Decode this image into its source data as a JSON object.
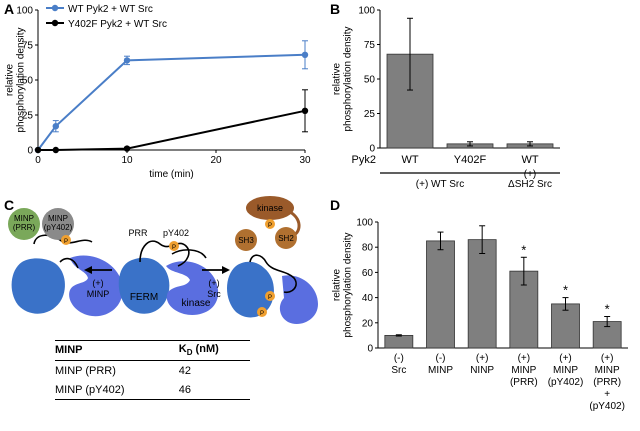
{
  "panels": {
    "A": "A",
    "B": "B",
    "C": "C",
    "D": "D"
  },
  "colors": {
    "blue": "#4a7ec7",
    "black": "#000000",
    "bar": "#7f7f7f",
    "blue_dark": "#3a66c4",
    "brown": "#9a5a2a",
    "green": "#7aa85a",
    "grey": "#8a8a8a",
    "orange": "#f0a030"
  },
  "chart_data": [
    {
      "panel": "A",
      "type": "line",
      "xlabel": "time (min)",
      "ylabel": "relative\nphosphorylation density",
      "xlim": [
        0,
        30
      ],
      "ylim": [
        0,
        100
      ],
      "xticks": [
        0,
        10,
        20,
        30
      ],
      "yticks": [
        0,
        25,
        50,
        75,
        100
      ],
      "legend": "top-left",
      "series": [
        {
          "name": "WT Pyk2 + WT Src",
          "color": "#4a7ec7",
          "x": [
            0,
            2,
            10,
            30
          ],
          "y": [
            0,
            17,
            64,
            68
          ],
          "err": [
            0,
            4,
            3,
            10
          ]
        },
        {
          "name": "Y402F Pyk2 + WT Src",
          "color": "#000000",
          "x": [
            0,
            2,
            10,
            30
          ],
          "y": [
            0,
            0,
            1,
            28
          ],
          "err": [
            0,
            0,
            1,
            15
          ]
        }
      ]
    },
    {
      "panel": "B",
      "type": "bar",
      "ylabel": "relative\nphosphorylation density",
      "ylim": [
        0,
        100
      ],
      "yticks": [
        0,
        25,
        50,
        75,
        100
      ],
      "row_label": "Pyk2",
      "categories": [
        "WT",
        "Y402F",
        "WT"
      ],
      "values": [
        68,
        3,
        3
      ],
      "err": [
        26,
        1.5,
        1.5
      ],
      "groups": [
        {
          "label": "(+) WT Src"
        },
        {
          "label_top": "(+)",
          "label_bottom": "ΔSH2 Src"
        }
      ]
    },
    {
      "panel": "D",
      "type": "bar",
      "ylabel": "relative\nphosphorylation density",
      "ylim": [
        0,
        100
      ],
      "yticks": [
        0,
        20,
        40,
        60,
        80,
        100
      ],
      "categories": [
        [
          "(-)",
          "Src"
        ],
        [
          "(-)",
          "MINP"
        ],
        [
          "(+)",
          "NINP"
        ],
        [
          "(+)",
          "MINP",
          "(PRR)"
        ],
        [
          "(+)",
          "MINP",
          "(pY402)"
        ],
        [
          "(+)",
          "MINP",
          "(PRR)",
          "+",
          "(pY402)"
        ]
      ],
      "values": [
        10,
        85,
        86,
        61,
        35,
        21
      ],
      "err": [
        0.5,
        7,
        11,
        11,
        5,
        4
      ],
      "significance": [
        "",
        "",
        "",
        "*",
        "*",
        "*"
      ]
    }
  ],
  "diagram": {
    "minp_prr": [
      "MINP",
      "(PRR)"
    ],
    "minp_py402": [
      "MINP",
      "(pY402)"
    ],
    "prr": "PRR",
    "py402": "pY402",
    "p": "P",
    "ferm": "FERM",
    "kinase": "kinase",
    "src_kinase": "kinase",
    "sh3": "SH3",
    "sh2": "SH2",
    "left_arrow": [
      "(+)",
      "MINP"
    ],
    "right_arrow": [
      "(+)",
      "Src"
    ]
  },
  "table": {
    "headers": [
      "MINP",
      "K",
      "D",
      " (nM)"
    ],
    "rows": [
      {
        "name": "MINP (PRR)",
        "kd": "42"
      },
      {
        "name": "MINP (pY402)",
        "kd": "46"
      }
    ]
  }
}
